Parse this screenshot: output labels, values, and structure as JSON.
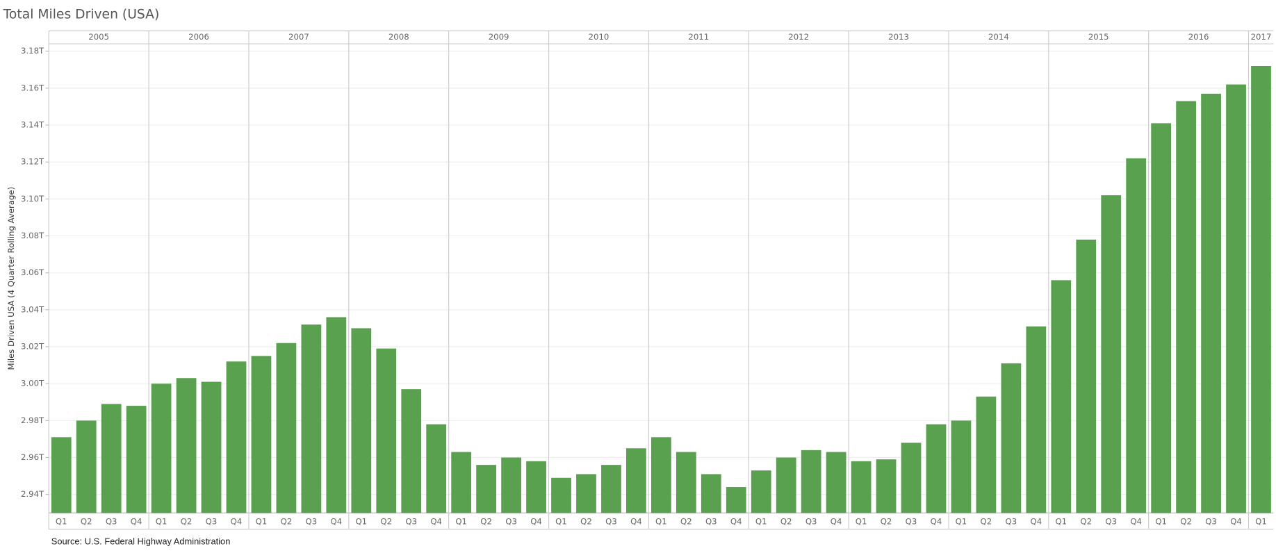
{
  "chart_data": {
    "type": "bar",
    "title": "Total Miles Driven (USA)",
    "y_label": "Miles Driven USA (4 Quarter Rolling Average)",
    "source": "Source: U.S. Federal Highway Administration",
    "year_groups": [
      {
        "name": "2005",
        "quarters": [
          "Q1",
          "Q2",
          "Q3",
          "Q4"
        ]
      },
      {
        "name": "2006",
        "quarters": [
          "Q1",
          "Q2",
          "Q3",
          "Q4"
        ]
      },
      {
        "name": "2007",
        "quarters": [
          "Q1",
          "Q2",
          "Q3",
          "Q4"
        ]
      },
      {
        "name": "2008",
        "quarters": [
          "Q1",
          "Q2",
          "Q3",
          "Q4"
        ]
      },
      {
        "name": "2009",
        "quarters": [
          "Q1",
          "Q2",
          "Q3",
          "Q4"
        ]
      },
      {
        "name": "2010",
        "quarters": [
          "Q1",
          "Q2",
          "Q3",
          "Q4"
        ]
      },
      {
        "name": "2011",
        "quarters": [
          "Q1",
          "Q2",
          "Q3",
          "Q4"
        ]
      },
      {
        "name": "2012",
        "quarters": [
          "Q1",
          "Q2",
          "Q3",
          "Q4"
        ]
      },
      {
        "name": "2013",
        "quarters": [
          "Q1",
          "Q2",
          "Q3",
          "Q4"
        ]
      },
      {
        "name": "2014",
        "quarters": [
          "Q1",
          "Q2",
          "Q3",
          "Q4"
        ]
      },
      {
        "name": "2015",
        "quarters": [
          "Q1",
          "Q2",
          "Q3",
          "Q4"
        ]
      },
      {
        "name": "2016",
        "quarters": [
          "Q1",
          "Q2",
          "Q3",
          "Q4"
        ]
      },
      {
        "name": "2017",
        "quarters": [
          "Q1"
        ]
      }
    ],
    "values": [
      2.971,
      2.98,
      2.989,
      2.988,
      3.0,
      3.003,
      3.001,
      3.012,
      3.015,
      3.022,
      3.032,
      3.036,
      3.03,
      3.019,
      2.997,
      2.978,
      2.963,
      2.956,
      2.96,
      2.958,
      2.949,
      2.951,
      2.956,
      2.965,
      2.971,
      2.963,
      2.951,
      2.944,
      2.953,
      2.96,
      2.964,
      2.963,
      2.958,
      2.959,
      2.968,
      2.978,
      2.98,
      2.993,
      3.011,
      3.031,
      3.056,
      3.078,
      3.102,
      3.122,
      3.141,
      3.153,
      3.157,
      3.162,
      3.172
    ],
    "color": "#59a14f",
    "ylim": [
      2.93,
      3.184
    ],
    "yticks": [
      {
        "value": 2.94,
        "label": "2.94T"
      },
      {
        "value": 2.96,
        "label": "2.96T"
      },
      {
        "value": 2.98,
        "label": "2.98T"
      },
      {
        "value": 3.0,
        "label": "3.00T"
      },
      {
        "value": 3.02,
        "label": "3.02T"
      },
      {
        "value": 3.04,
        "label": "3.04T"
      },
      {
        "value": 3.06,
        "label": "3.06T"
      },
      {
        "value": 3.08,
        "label": "3.08T"
      },
      {
        "value": 3.1,
        "label": "3.10T"
      },
      {
        "value": 3.12,
        "label": "3.12T"
      },
      {
        "value": 3.14,
        "label": "3.14T"
      },
      {
        "value": 3.16,
        "label": "3.16T"
      },
      {
        "value": 3.18,
        "label": "3.18T"
      }
    ],
    "grid": true
  }
}
